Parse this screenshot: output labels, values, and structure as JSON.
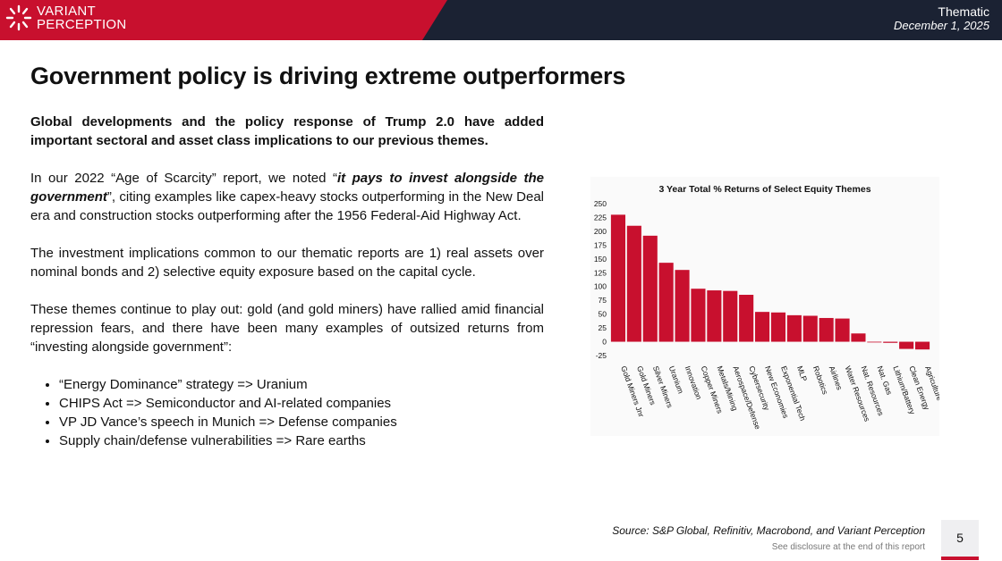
{
  "header": {
    "logo_line1": "VARIANT",
    "logo_line2": "PERCEPTION",
    "report_type": "Thematic",
    "date": "December 1, 2025"
  },
  "title": "Government policy is driving extreme outperformers",
  "body": {
    "lead": "Global developments and the policy response of Trump 2.0 have added important sectoral and asset class implications to our previous themes.",
    "p1_pre": "In our 2022 “Age of Scarcity” report, we noted “",
    "p1_emph": "it pays to invest alongside the government",
    "p1_post": "”, citing examples like capex-heavy stocks outperforming in the New Deal era and construction stocks outperforming after the 1956 Federal-Aid Highway Act.",
    "p2": "The investment implications common to our thematic reports are 1) real assets over nominal bonds and 2) selective equity exposure based on the capital cycle.",
    "p3": "These themes continue to play out: gold (and gold miners) have rallied amid financial repression fears, and there have been many examples of outsized returns from “investing alongside government”:",
    "bullets": [
      "“Energy Dominance” strategy => Uranium",
      "CHIPS Act => Semiconductor and AI-related companies",
      "VP JD Vance’s speech in Munich => Defense companies",
      "Supply chain/defense vulnerabilities => Rare earths"
    ]
  },
  "chart_data": {
    "type": "bar",
    "title": "3 Year Total % Returns of Select Equity Themes",
    "categories": [
      "Gold Miners Jnr",
      "Gold Miners",
      "Silver Miners",
      "Uranium",
      "Innovation",
      "Copper Miners",
      "Metals/Mining",
      "Aerospace/Defense",
      "Cybersecurity",
      "New Economies",
      "Exponential Tech",
      "MLP",
      "Robotics",
      "Airlines",
      "Water Resources",
      "Nat. Resources",
      "Nat. Gas",
      "Lithium/Battery",
      "Clean Energy",
      "Agriculture"
    ],
    "values": [
      230,
      210,
      192,
      143,
      130,
      96,
      93,
      92,
      85,
      54,
      53,
      48,
      47,
      43,
      42,
      15,
      0,
      -2,
      -13,
      -14
    ],
    "yticks": [
      250,
      225,
      200,
      175,
      150,
      125,
      100,
      75,
      50,
      25,
      0,
      -25
    ],
    "ylim": [
      -25,
      250
    ],
    "bar_color": "#c8102e",
    "grid": false
  },
  "footer": {
    "source": "Source: S&P Global, Refinitiv, Macrobond, and Variant Perception",
    "disclosure": "See disclosure at the end of this report",
    "page_number": "5"
  },
  "colors": {
    "brand_red": "#c8102e",
    "navy": "#1b2233"
  }
}
